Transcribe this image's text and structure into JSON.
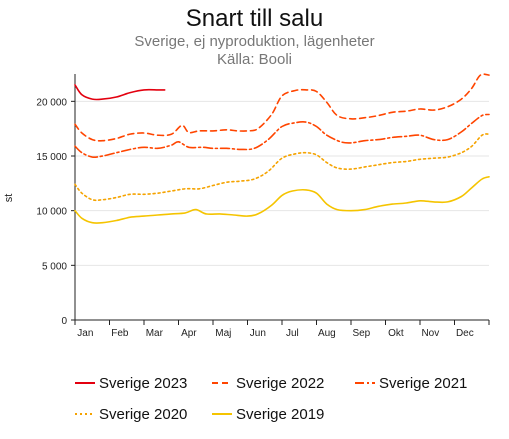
{
  "chart_data": {
    "type": "line",
    "title": "Snart till salu",
    "subtitle": "Sverige, ej nyproduktion, lägenheter",
    "source": "Källa: Booli",
    "xlabel": "",
    "ylabel": "st",
    "ylim": [
      0,
      22500
    ],
    "yticks": [
      0,
      5000,
      10000,
      15000,
      20000
    ],
    "ytick_labels": [
      "0",
      "5 000",
      "10 000",
      "15 000",
      "20 000"
    ],
    "x_range": [
      0,
      12
    ],
    "months": [
      "Jan",
      "Feb",
      "Mar",
      "Apr",
      "Maj",
      "Jun",
      "Jul",
      "Aug",
      "Sep",
      "Okt",
      "Nov",
      "Dec"
    ],
    "grid": "horizontal",
    "legend_position": "bottom",
    "series": [
      {
        "name": "Sverige 2023",
        "color": "#e3000f",
        "style": "solid",
        "points": [
          [
            0,
            21500
          ],
          [
            0.2,
            20600
          ],
          [
            0.5,
            20200
          ],
          [
            0.8,
            20200
          ],
          [
            1.2,
            20400
          ],
          [
            1.6,
            20800
          ],
          [
            2.0,
            21050
          ],
          [
            2.4,
            21050
          ],
          [
            2.6,
            21050
          ]
        ]
      },
      {
        "name": "Sverige 2022",
        "color": "#ff4500",
        "style": "dashed",
        "points": [
          [
            0,
            17900
          ],
          [
            0.2,
            17100
          ],
          [
            0.5,
            16500
          ],
          [
            0.8,
            16400
          ],
          [
            1.2,
            16600
          ],
          [
            1.6,
            17000
          ],
          [
            2.0,
            17100
          ],
          [
            2.4,
            16900
          ],
          [
            2.8,
            17000
          ],
          [
            3.1,
            17800
          ],
          [
            3.3,
            17150
          ],
          [
            3.6,
            17300
          ],
          [
            4.0,
            17300
          ],
          [
            4.4,
            17400
          ],
          [
            4.7,
            17300
          ],
          [
            5.0,
            17300
          ],
          [
            5.3,
            17500
          ],
          [
            5.7,
            18800
          ],
          [
            6.0,
            20500
          ],
          [
            6.4,
            21000
          ],
          [
            6.7,
            21050
          ],
          [
            7.0,
            20900
          ],
          [
            7.3,
            19900
          ],
          [
            7.6,
            18700
          ],
          [
            8.0,
            18400
          ],
          [
            8.4,
            18500
          ],
          [
            8.8,
            18700
          ],
          [
            9.2,
            19000
          ],
          [
            9.6,
            19100
          ],
          [
            10.0,
            19300
          ],
          [
            10.4,
            19200
          ],
          [
            10.8,
            19500
          ],
          [
            11.2,
            20200
          ],
          [
            11.5,
            21200
          ],
          [
            11.75,
            22400
          ],
          [
            12.0,
            22400
          ]
        ]
      },
      {
        "name": "Sverige 2021",
        "color": "#ff4500",
        "style": "dashdot",
        "points": [
          [
            0,
            15900
          ],
          [
            0.2,
            15300
          ],
          [
            0.5,
            14900
          ],
          [
            0.8,
            15000
          ],
          [
            1.2,
            15300
          ],
          [
            1.6,
            15600
          ],
          [
            2.0,
            15800
          ],
          [
            2.4,
            15700
          ],
          [
            2.8,
            16000
          ],
          [
            3.0,
            16300
          ],
          [
            3.3,
            15800
          ],
          [
            3.7,
            15800
          ],
          [
            4.0,
            15700
          ],
          [
            4.4,
            15700
          ],
          [
            4.8,
            15600
          ],
          [
            5.2,
            15700
          ],
          [
            5.6,
            16500
          ],
          [
            6.0,
            17700
          ],
          [
            6.4,
            18050
          ],
          [
            6.7,
            18100
          ],
          [
            7.0,
            17700
          ],
          [
            7.3,
            16900
          ],
          [
            7.7,
            16300
          ],
          [
            8.0,
            16200
          ],
          [
            8.4,
            16400
          ],
          [
            8.8,
            16500
          ],
          [
            9.2,
            16700
          ],
          [
            9.6,
            16800
          ],
          [
            10.0,
            16900
          ],
          [
            10.4,
            16500
          ],
          [
            10.8,
            16500
          ],
          [
            11.2,
            17200
          ],
          [
            11.5,
            18000
          ],
          [
            11.8,
            18700
          ],
          [
            12.0,
            18800
          ]
        ]
      },
      {
        "name": "Sverige 2020",
        "color": "#f5a300",
        "style": "dotted",
        "points": [
          [
            0,
            12400
          ],
          [
            0.2,
            11600
          ],
          [
            0.5,
            11000
          ],
          [
            0.8,
            11000
          ],
          [
            1.2,
            11200
          ],
          [
            1.6,
            11500
          ],
          [
            2.0,
            11500
          ],
          [
            2.4,
            11600
          ],
          [
            2.8,
            11800
          ],
          [
            3.2,
            12000
          ],
          [
            3.6,
            12000
          ],
          [
            4.0,
            12300
          ],
          [
            4.4,
            12600
          ],
          [
            4.8,
            12700
          ],
          [
            5.2,
            12900
          ],
          [
            5.6,
            13600
          ],
          [
            6.0,
            14800
          ],
          [
            6.4,
            15200
          ],
          [
            6.7,
            15300
          ],
          [
            7.0,
            15100
          ],
          [
            7.3,
            14400
          ],
          [
            7.6,
            13900
          ],
          [
            8.0,
            13800
          ],
          [
            8.4,
            14000
          ],
          [
            8.8,
            14200
          ],
          [
            9.2,
            14400
          ],
          [
            9.6,
            14500
          ],
          [
            10.0,
            14700
          ],
          [
            10.4,
            14800
          ],
          [
            10.8,
            14900
          ],
          [
            11.2,
            15300
          ],
          [
            11.5,
            15900
          ],
          [
            11.8,
            16900
          ],
          [
            12.0,
            17000
          ]
        ]
      },
      {
        "name": "Sverige 2019",
        "color": "#f5c400",
        "style": "solid",
        "points": [
          [
            0,
            10000
          ],
          [
            0.2,
            9300
          ],
          [
            0.5,
            8900
          ],
          [
            0.8,
            8900
          ],
          [
            1.2,
            9100
          ],
          [
            1.6,
            9400
          ],
          [
            2.0,
            9500
          ],
          [
            2.4,
            9600
          ],
          [
            2.8,
            9700
          ],
          [
            3.2,
            9800
          ],
          [
            3.5,
            10100
          ],
          [
            3.8,
            9700
          ],
          [
            4.2,
            9700
          ],
          [
            4.6,
            9600
          ],
          [
            5.0,
            9500
          ],
          [
            5.3,
            9700
          ],
          [
            5.7,
            10500
          ],
          [
            6.0,
            11400
          ],
          [
            6.3,
            11800
          ],
          [
            6.7,
            11900
          ],
          [
            7.0,
            11600
          ],
          [
            7.3,
            10600
          ],
          [
            7.6,
            10100
          ],
          [
            8.0,
            10000
          ],
          [
            8.4,
            10100
          ],
          [
            8.8,
            10400
          ],
          [
            9.2,
            10600
          ],
          [
            9.6,
            10700
          ],
          [
            10.0,
            10900
          ],
          [
            10.4,
            10800
          ],
          [
            10.8,
            10800
          ],
          [
            11.2,
            11300
          ],
          [
            11.5,
            12100
          ],
          [
            11.8,
            12900
          ],
          [
            12.0,
            13100
          ]
        ]
      }
    ]
  }
}
